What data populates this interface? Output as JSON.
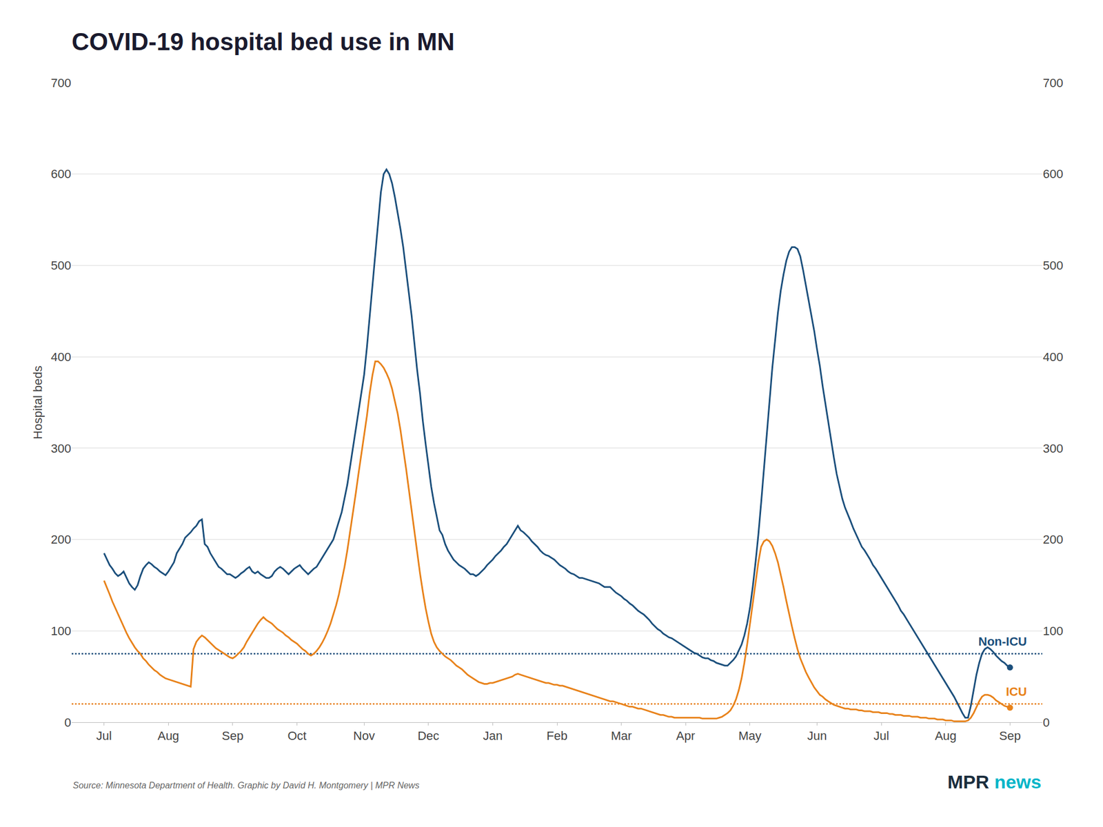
{
  "chart_data": {
    "type": "line",
    "title": "COVID-19 hospital bed use in MN",
    "ylabel": "Hospital beds",
    "source": "Source: Minnesota Department of Health. Graphic by David H. Montgomery | MPR News",
    "annotations": [
      {
        "text": "MPR",
        "color": "#1a2d3d"
      },
      {
        "text": "news",
        "color": "#00b5c8"
      }
    ],
    "grid": true,
    "ylim": [
      0,
      700
    ],
    "yticks": [
      0,
      100,
      200,
      300,
      400,
      500,
      600,
      700
    ],
    "y2lim": [
      0,
      700
    ],
    "y2ticks": [
      0,
      100,
      200,
      300,
      400,
      500,
      600,
      700
    ],
    "categories": [
      "Jul",
      null,
      null,
      null,
      null,
      null,
      null,
      null,
      null,
      null,
      null,
      null,
      null,
      null,
      null,
      null,
      null,
      null,
      null,
      null,
      null,
      null,
      null,
      "Aug",
      null,
      null,
      null,
      null,
      null,
      null,
      null,
      null,
      null,
      null,
      null,
      null,
      null,
      null,
      null,
      null,
      null,
      null,
      null,
      null,
      null,
      null,
      "Sep",
      null,
      null,
      null,
      null,
      null,
      null,
      null,
      null,
      null,
      null,
      null,
      null,
      null,
      null,
      null,
      null,
      null,
      null,
      null,
      null,
      null,
      null,
      "Oct",
      null,
      null,
      null,
      null,
      null,
      null,
      null,
      null,
      null,
      null,
      null,
      null,
      null,
      null,
      null,
      null,
      null,
      null,
      null,
      null,
      null,
      null,
      null,
      "Nov",
      null,
      null,
      null,
      null,
      null,
      null,
      null,
      null,
      null,
      null,
      null,
      null,
      null,
      null,
      null,
      null,
      null,
      null,
      null,
      null,
      null,
      null,
      "Dec",
      null,
      null,
      null,
      null,
      null,
      null,
      null,
      null,
      null,
      null,
      null,
      null,
      null,
      null,
      null,
      null,
      null,
      null,
      null,
      null,
      null,
      null,
      "Jan",
      null,
      null,
      null,
      null,
      null,
      null,
      null,
      null,
      null,
      null,
      null,
      null,
      null,
      null,
      null,
      null,
      null,
      null,
      null,
      null,
      null,
      null,
      "Feb",
      null,
      null,
      null,
      null,
      null,
      null,
      null,
      null,
      null,
      null,
      null,
      null,
      null,
      null,
      null,
      null,
      null,
      null,
      null,
      null,
      null,
      null,
      "Mar",
      null,
      null,
      null,
      null,
      null,
      null,
      null,
      null,
      null,
      null,
      null,
      null,
      null,
      null,
      null,
      null,
      null,
      null,
      null,
      null,
      null,
      null,
      "Apr",
      null,
      null,
      null,
      null,
      null,
      null,
      null,
      null,
      null,
      null,
      null,
      null,
      null,
      null,
      null,
      null,
      null,
      null,
      null,
      null,
      null,
      null,
      "May",
      null,
      null,
      null,
      null,
      null,
      null,
      null,
      null,
      null,
      null,
      null,
      null,
      null,
      null,
      null,
      null,
      null,
      null,
      null,
      null,
      null,
      null,
      null,
      "Jun",
      null,
      null,
      null,
      null,
      null,
      null,
      null,
      null,
      null,
      null,
      null,
      null,
      null,
      null,
      null,
      null,
      null,
      null,
      null,
      null,
      null,
      null,
      "Jul",
      null,
      null,
      null,
      null,
      null,
      null,
      null,
      null,
      null,
      null,
      null,
      null,
      null,
      null,
      null,
      null,
      null,
      null,
      null,
      null,
      null,
      null,
      "Aug",
      null,
      null,
      null,
      null,
      null,
      null,
      null,
      null,
      null,
      null,
      null,
      null,
      null,
      null,
      null,
      null,
      null,
      null,
      null,
      null,
      null,
      null,
      "Sep"
    ],
    "series": [
      {
        "name": "Non-ICU",
        "color": "#1b4f7c",
        "reference_line": 75,
        "values": [
          185,
          178,
          172,
          168,
          163,
          160,
          162,
          165,
          158,
          152,
          148,
          145,
          150,
          160,
          168,
          172,
          175,
          173,
          170,
          168,
          165,
          163,
          161,
          165,
          170,
          175,
          185,
          190,
          195,
          202,
          205,
          208,
          212,
          215,
          220,
          222,
          195,
          192,
          185,
          180,
          175,
          170,
          168,
          165,
          162,
          162,
          160,
          158,
          160,
          163,
          165,
          168,
          170,
          165,
          163,
          165,
          162,
          160,
          158,
          158,
          160,
          165,
          168,
          170,
          168,
          165,
          162,
          165,
          168,
          170,
          172,
          168,
          165,
          162,
          165,
          168,
          170,
          175,
          180,
          185,
          190,
          195,
          200,
          210,
          220,
          230,
          245,
          260,
          280,
          300,
          320,
          340,
          360,
          380,
          410,
          445,
          480,
          515,
          550,
          580,
          600,
          605,
          600,
          590,
          575,
          558,
          540,
          520,
          495,
          470,
          445,
          415,
          385,
          360,
          330,
          305,
          280,
          258,
          240,
          225,
          210,
          205,
          195,
          188,
          183,
          178,
          175,
          172,
          170,
          168,
          165,
          162,
          162,
          160,
          162,
          165,
          168,
          172,
          175,
          178,
          182,
          185,
          188,
          192,
          195,
          200,
          205,
          210,
          215,
          210,
          208,
          205,
          202,
          198,
          195,
          192,
          188,
          185,
          183,
          182,
          180,
          178,
          175,
          172,
          170,
          168,
          165,
          163,
          162,
          160,
          158,
          158,
          157,
          156,
          155,
          154,
          153,
          152,
          150,
          148,
          148,
          148,
          145,
          142,
          140,
          138,
          135,
          133,
          130,
          128,
          125,
          122,
          120,
          118,
          115,
          112,
          108,
          105,
          102,
          100,
          97,
          95,
          93,
          92,
          90,
          88,
          86,
          84,
          82,
          80,
          78,
          76,
          75,
          73,
          71,
          70,
          70,
          68,
          67,
          65,
          64,
          63,
          62,
          62,
          65,
          68,
          72,
          78,
          85,
          95,
          108,
          125,
          148,
          175,
          205,
          240,
          278,
          315,
          350,
          388,
          418,
          448,
          472,
          490,
          505,
          515,
          520,
          520,
          518,
          510,
          495,
          478,
          462,
          445,
          428,
          408,
          390,
          368,
          348,
          328,
          308,
          290,
          272,
          258,
          245,
          235,
          228,
          220,
          212,
          205,
          198,
          192,
          188,
          183,
          178,
          172,
          168,
          163,
          158,
          153,
          148,
          143,
          138,
          133,
          128,
          122,
          118,
          113,
          108,
          103,
          98,
          93,
          88,
          83,
          78,
          73,
          68,
          63,
          58,
          53,
          48,
          43,
          38,
          33,
          28,
          22,
          16,
          10,
          5,
          5,
          18,
          35,
          52,
          65,
          75,
          80,
          82,
          80,
          77,
          73,
          70,
          67,
          65,
          62,
          60
        ]
      },
      {
        "name": "ICU",
        "color": "#e8821a",
        "reference_line": 20,
        "values": [
          155,
          148,
          140,
          132,
          125,
          118,
          112,
          105,
          98,
          92,
          87,
          82,
          78,
          75,
          70,
          67,
          63,
          60,
          57,
          55,
          52,
          50,
          48,
          47,
          46,
          45,
          44,
          43,
          42,
          41,
          40,
          39,
          80,
          88,
          92,
          95,
          93,
          90,
          87,
          84,
          81,
          79,
          77,
          75,
          73,
          71,
          70,
          72,
          75,
          78,
          82,
          88,
          93,
          98,
          103,
          108,
          112,
          115,
          112,
          110,
          108,
          105,
          102,
          100,
          98,
          95,
          93,
          90,
          88,
          86,
          83,
          80,
          78,
          75,
          73,
          75,
          78,
          82,
          87,
          93,
          100,
          108,
          118,
          128,
          140,
          155,
          170,
          188,
          208,
          228,
          250,
          272,
          292,
          312,
          335,
          360,
          380,
          395,
          395,
          392,
          388,
          382,
          375,
          365,
          352,
          338,
          320,
          300,
          278,
          255,
          232,
          208,
          185,
          163,
          143,
          125,
          110,
          97,
          88,
          82,
          78,
          75,
          72,
          70,
          68,
          65,
          62,
          60,
          58,
          55,
          52,
          50,
          48,
          46,
          44,
          43,
          42,
          42,
          43,
          43,
          44,
          45,
          46,
          47,
          48,
          49,
          50,
          52,
          53,
          52,
          51,
          50,
          49,
          48,
          47,
          46,
          45,
          44,
          43,
          43,
          42,
          41,
          41,
          40,
          40,
          39,
          38,
          37,
          36,
          35,
          34,
          33,
          32,
          31,
          30,
          29,
          28,
          27,
          26,
          25,
          24,
          23,
          23,
          22,
          21,
          20,
          19,
          18,
          17,
          17,
          16,
          15,
          15,
          14,
          13,
          12,
          11,
          10,
          9,
          8,
          8,
          7,
          6,
          6,
          5,
          5,
          5,
          5,
          5,
          5,
          5,
          5,
          5,
          5,
          4,
          4,
          4,
          4,
          4,
          4,
          5,
          6,
          8,
          10,
          13,
          18,
          25,
          35,
          48,
          65,
          85,
          108,
          132,
          155,
          175,
          192,
          198,
          200,
          198,
          193,
          185,
          175,
          162,
          148,
          133,
          118,
          105,
          92,
          80,
          70,
          62,
          55,
          49,
          43,
          38,
          34,
          30,
          28,
          25,
          23,
          21,
          19,
          18,
          17,
          16,
          15,
          15,
          14,
          14,
          14,
          13,
          13,
          12,
          12,
          12,
          11,
          11,
          11,
          10,
          10,
          10,
          9,
          9,
          8,
          8,
          8,
          7,
          7,
          7,
          6,
          6,
          6,
          5,
          5,
          5,
          4,
          4,
          4,
          3,
          3,
          3,
          2,
          2,
          2,
          1,
          1,
          1,
          1,
          1,
          2,
          5,
          10,
          17,
          23,
          28,
          30,
          30,
          29,
          27,
          24,
          22,
          20,
          18,
          17,
          16
        ]
      }
    ]
  }
}
